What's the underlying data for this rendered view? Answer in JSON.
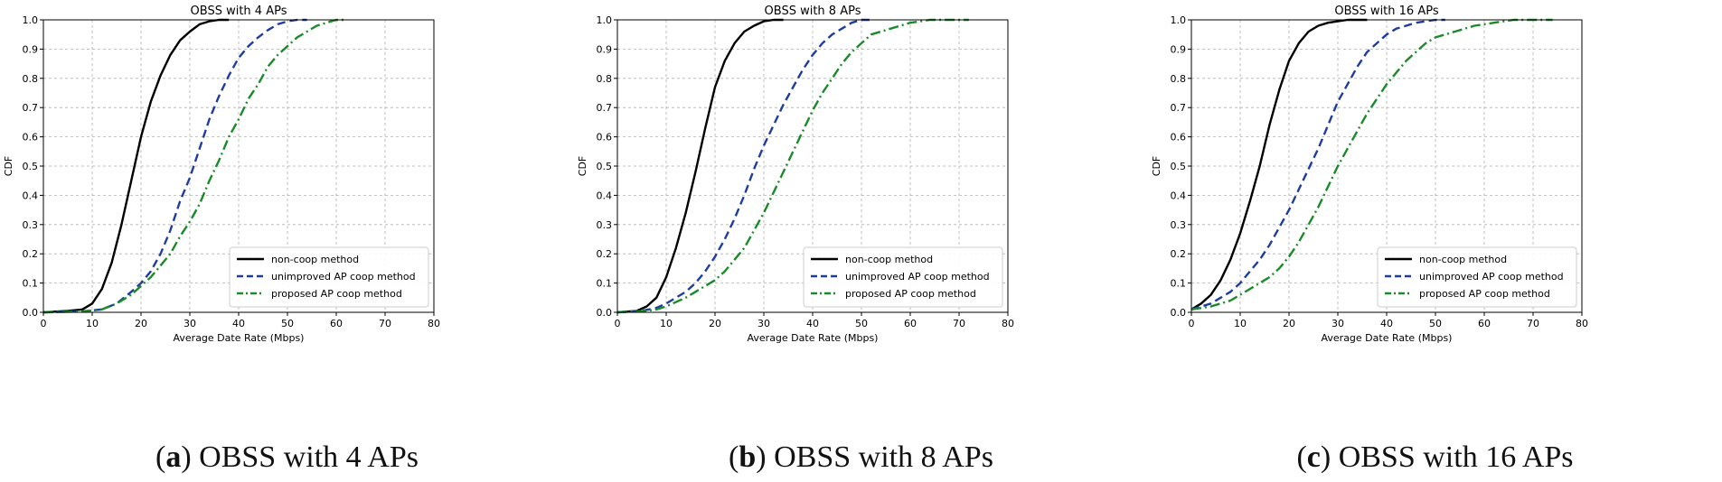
{
  "figure": {
    "captions": [
      {
        "letter": "a",
        "text": "OBSS with 4 APs"
      },
      {
        "letter": "b",
        "text": "OBSS with 8 APs"
      },
      {
        "letter": "c",
        "text": "OBSS with 16 APs"
      }
    ]
  },
  "colors": {
    "non_coop": "#000000",
    "unimproved": "#1f3d9e",
    "proposed": "#1a8a2a",
    "grid": "#b0b0b0"
  },
  "chart_data": [
    {
      "type": "line",
      "title": "OBSS with 4 APs",
      "xlabel": "Average Date Rate (Mbps)",
      "ylabel": "CDF",
      "xlim": [
        0,
        80
      ],
      "ylim": [
        0,
        1.0
      ],
      "xticks": [
        "0",
        "10",
        "20",
        "30",
        "40",
        "50",
        "60",
        "70",
        "80"
      ],
      "yticks": [
        "0.0",
        "0.1",
        "0.2",
        "0.3",
        "0.4",
        "0.5",
        "0.6",
        "0.7",
        "0.8",
        "0.9",
        "1.0"
      ],
      "grid": true,
      "legend_position": "bottom-right",
      "series": [
        {
          "name": "non-coop method",
          "style": "solid",
          "x": [
            0,
            5,
            8,
            10,
            12,
            14,
            16,
            18,
            20,
            22,
            24,
            26,
            28,
            30,
            32,
            34,
            36,
            38
          ],
          "y": [
            0,
            0.005,
            0.01,
            0.03,
            0.08,
            0.17,
            0.3,
            0.45,
            0.6,
            0.72,
            0.81,
            0.88,
            0.93,
            0.96,
            0.985,
            0.995,
            1.0,
            1.0
          ]
        },
        {
          "name": "unimproved AP coop method",
          "style": "dashed",
          "x": [
            0,
            8,
            12,
            15,
            18,
            20,
            22,
            24,
            26,
            28,
            30,
            32,
            34,
            36,
            38,
            40,
            42,
            44,
            46,
            48,
            50,
            52,
            54
          ],
          "y": [
            0,
            0.003,
            0.01,
            0.03,
            0.07,
            0.1,
            0.14,
            0.2,
            0.28,
            0.38,
            0.46,
            0.56,
            0.66,
            0.74,
            0.81,
            0.87,
            0.91,
            0.94,
            0.965,
            0.985,
            0.995,
            1.0,
            1.0
          ]
        },
        {
          "name": "proposed AP coop method",
          "style": "dashdot",
          "x": [
            0,
            8,
            12,
            15,
            18,
            20,
            22,
            24,
            26,
            28,
            30,
            32,
            34,
            36,
            38,
            40,
            42,
            44,
            46,
            48,
            50,
            52,
            54,
            56,
            58,
            60,
            62
          ],
          "y": [
            0,
            0.003,
            0.01,
            0.03,
            0.06,
            0.09,
            0.12,
            0.16,
            0.2,
            0.26,
            0.31,
            0.37,
            0.45,
            0.52,
            0.6,
            0.66,
            0.73,
            0.78,
            0.84,
            0.88,
            0.91,
            0.94,
            0.96,
            0.98,
            0.99,
            1.0,
            1.0
          ]
        }
      ]
    },
    {
      "type": "line",
      "title": "OBSS with 8 APs",
      "xlabel": "Average Date Rate (Mbps)",
      "ylabel": "CDF",
      "xlim": [
        0,
        80
      ],
      "ylim": [
        0,
        1.0
      ],
      "xticks": [
        "0",
        "10",
        "20",
        "30",
        "40",
        "50",
        "60",
        "70",
        "80"
      ],
      "yticks": [
        "0.0",
        "0.1",
        "0.2",
        "0.3",
        "0.4",
        "0.5",
        "0.6",
        "0.7",
        "0.8",
        "0.9",
        "1.0"
      ],
      "grid": true,
      "legend_position": "bottom-right",
      "series": [
        {
          "name": "non-coop method",
          "style": "solid",
          "x": [
            0,
            4,
            6,
            8,
            10,
            12,
            14,
            16,
            18,
            20,
            22,
            24,
            26,
            28,
            30,
            32,
            34
          ],
          "y": [
            0,
            0.005,
            0.02,
            0.05,
            0.12,
            0.22,
            0.34,
            0.48,
            0.63,
            0.77,
            0.86,
            0.92,
            0.96,
            0.98,
            0.995,
            1.0,
            1.0
          ]
        },
        {
          "name": "unimproved AP coop method",
          "style": "dashed",
          "x": [
            0,
            5,
            8,
            10,
            14,
            16,
            18,
            20,
            22,
            24,
            26,
            28,
            30,
            32,
            34,
            36,
            38,
            40,
            42,
            44,
            46,
            48,
            50,
            52
          ],
          "y": [
            0,
            0.005,
            0.015,
            0.03,
            0.07,
            0.1,
            0.14,
            0.19,
            0.25,
            0.32,
            0.4,
            0.49,
            0.57,
            0.64,
            0.71,
            0.77,
            0.83,
            0.88,
            0.92,
            0.95,
            0.97,
            0.99,
            1.0,
            1.0
          ]
        },
        {
          "name": "proposed AP coop method",
          "style": "dashdot",
          "x": [
            0,
            5,
            8,
            10,
            14,
            16,
            18,
            20,
            22,
            24,
            26,
            28,
            30,
            32,
            34,
            36,
            38,
            40,
            42,
            44,
            46,
            48,
            50,
            52,
            56,
            60,
            64,
            68,
            72
          ],
          "y": [
            0,
            0.003,
            0.01,
            0.02,
            0.05,
            0.07,
            0.09,
            0.11,
            0.14,
            0.18,
            0.22,
            0.28,
            0.34,
            0.41,
            0.48,
            0.55,
            0.62,
            0.69,
            0.75,
            0.8,
            0.85,
            0.89,
            0.92,
            0.95,
            0.97,
            0.99,
            1.0,
            1.0,
            1.0
          ]
        }
      ]
    },
    {
      "type": "line",
      "title": "OBSS with 16 APs",
      "xlabel": "Average Date Rate (Mbps)",
      "ylabel": "CDF",
      "xlim": [
        0,
        80
      ],
      "ylim": [
        0,
        1.0
      ],
      "xticks": [
        "0",
        "10",
        "20",
        "30",
        "40",
        "50",
        "60",
        "70",
        "80"
      ],
      "yticks": [
        "0.0",
        "0.1",
        "0.2",
        "0.3",
        "0.4",
        "0.5",
        "0.6",
        "0.7",
        "0.8",
        "0.9",
        "1.0"
      ],
      "grid": true,
      "legend_position": "bottom-right",
      "series": [
        {
          "name": "non-coop method",
          "style": "solid",
          "x": [
            0,
            2,
            4,
            6,
            8,
            10,
            12,
            14,
            16,
            18,
            20,
            22,
            24,
            26,
            28,
            30,
            32,
            34,
            36
          ],
          "y": [
            0.01,
            0.03,
            0.06,
            0.11,
            0.18,
            0.27,
            0.38,
            0.5,
            0.64,
            0.76,
            0.86,
            0.92,
            0.96,
            0.98,
            0.99,
            0.995,
            1.0,
            1.0,
            1.0
          ]
        },
        {
          "name": "unimproved AP coop method",
          "style": "dashed",
          "x": [
            0,
            2,
            4,
            6,
            8,
            10,
            12,
            14,
            16,
            18,
            20,
            22,
            24,
            26,
            28,
            30,
            32,
            34,
            36,
            38,
            40,
            42,
            44,
            46,
            48,
            50,
            52
          ],
          "y": [
            0.01,
            0.02,
            0.03,
            0.05,
            0.07,
            0.1,
            0.14,
            0.18,
            0.23,
            0.29,
            0.35,
            0.42,
            0.49,
            0.56,
            0.64,
            0.72,
            0.78,
            0.84,
            0.89,
            0.92,
            0.95,
            0.97,
            0.98,
            0.99,
            0.995,
            1.0,
            1.0
          ]
        },
        {
          "name": "proposed AP coop method",
          "style": "dashdot",
          "x": [
            0,
            4,
            8,
            10,
            12,
            14,
            16,
            18,
            20,
            22,
            24,
            26,
            28,
            30,
            32,
            34,
            36,
            38,
            40,
            42,
            44,
            46,
            48,
            50,
            54,
            58,
            62,
            66,
            70,
            74
          ],
          "y": [
            0.01,
            0.02,
            0.04,
            0.06,
            0.08,
            0.1,
            0.12,
            0.15,
            0.19,
            0.24,
            0.3,
            0.36,
            0.43,
            0.5,
            0.56,
            0.62,
            0.68,
            0.73,
            0.78,
            0.82,
            0.86,
            0.89,
            0.92,
            0.94,
            0.96,
            0.98,
            0.99,
            1.0,
            1.0,
            1.0
          ]
        }
      ]
    }
  ]
}
